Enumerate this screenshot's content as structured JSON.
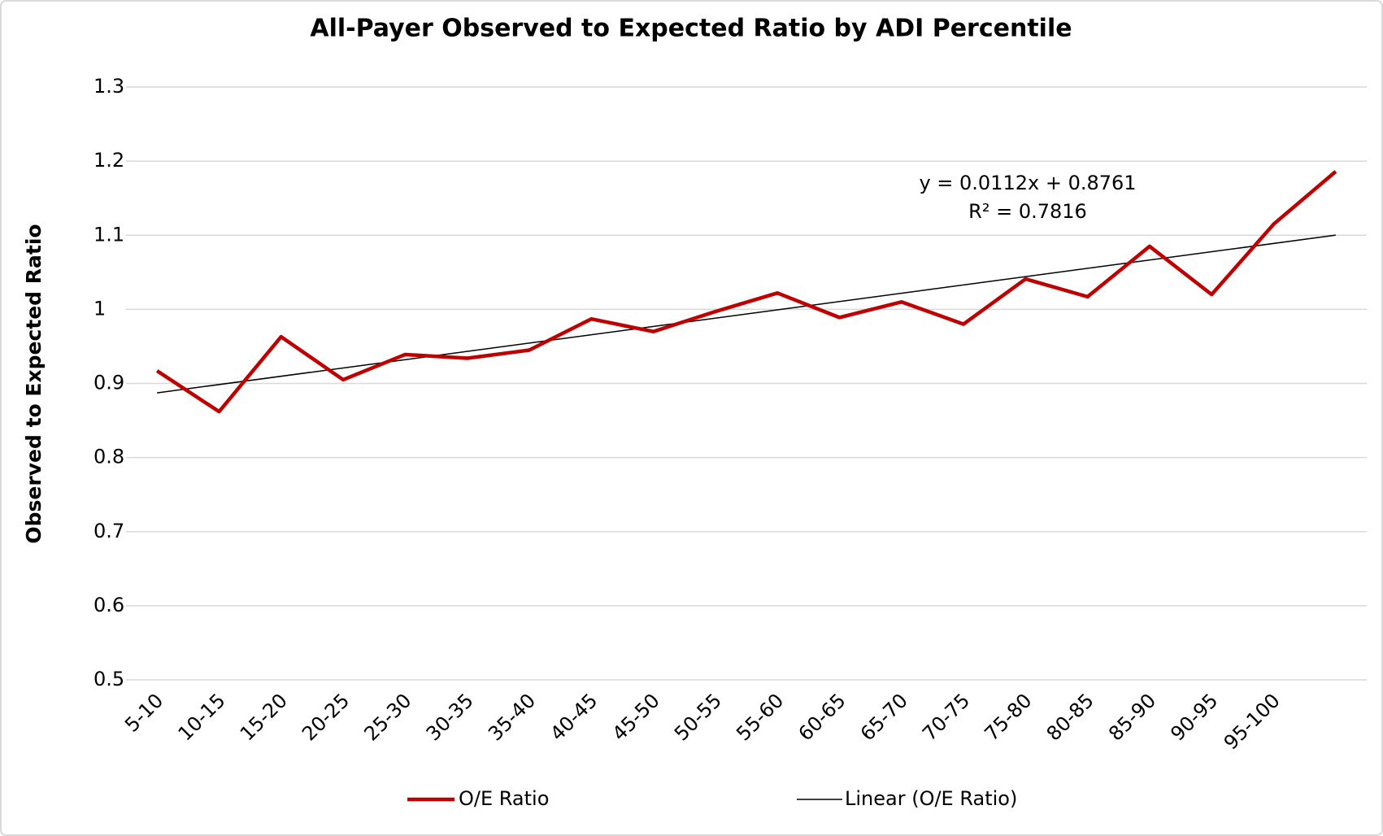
{
  "chart_data": {
    "type": "line",
    "title": "All-Payer Observed to Expected Ratio by ADI Percentile",
    "ylabel": "Observed to Expected Ratio",
    "categories": [
      "5-10",
      "10-15",
      "15-20",
      "20-25",
      "25-30",
      "30-35",
      "35-40",
      "40-45",
      "45-50",
      "50-55",
      "55-60",
      "60-65",
      "65-70",
      "70-75",
      "75-80",
      "80-85",
      "85-90",
      "90-95",
      "95-100",
      null
    ],
    "series": [
      {
        "name": "O/E Ratio",
        "color": "#c00000",
        "values": [
          0.917,
          0.862,
          0.963,
          0.905,
          0.939,
          0.934,
          0.945,
          0.987,
          0.97,
          0.997,
          1.022,
          0.989,
          1.01,
          0.98,
          1.041,
          1.017,
          1.085,
          1.02,
          1.115,
          1.186
        ]
      }
    ],
    "trendline": {
      "name": "Linear (O/E Ratio)",
      "color": "#000000",
      "slope": 0.0112,
      "intercept": 0.8761,
      "equation": "y = 0.0112x + 0.8761",
      "r_squared": "R² = 0.7816"
    },
    "ylim": [
      0.5,
      1.3
    ],
    "yticks": [
      0.5,
      0.6,
      0.7,
      0.8,
      0.9,
      1,
      1.1,
      1.2,
      1.3
    ],
    "grid": true,
    "legend": "bottom"
  }
}
